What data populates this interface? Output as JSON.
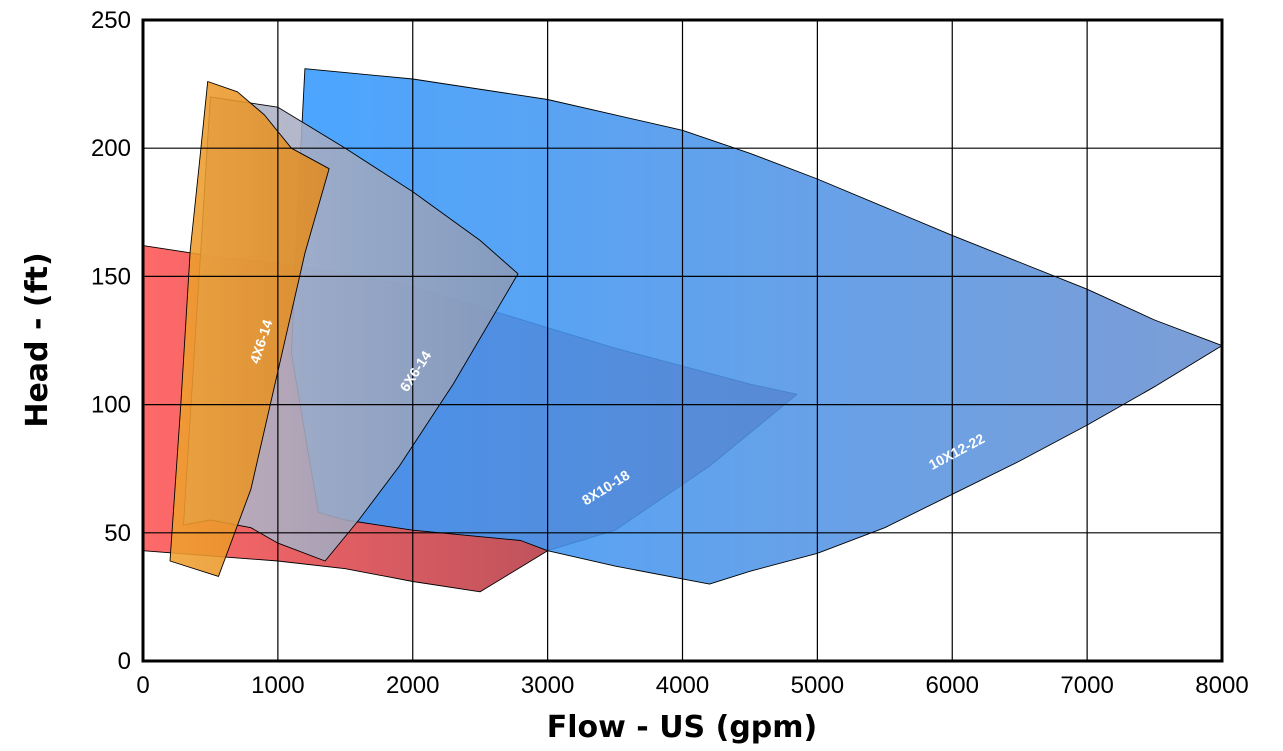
{
  "chart_data": {
    "type": "area",
    "xlabel": "Flow - US (gpm)",
    "ylabel": "Head - (ft)",
    "xlim": [
      0,
      8000
    ],
    "ylim": [
      0,
      250
    ],
    "x_ticks": [
      "0",
      "1000",
      "2000",
      "3000",
      "4000",
      "5000",
      "6000",
      "7000",
      "8000"
    ],
    "y_ticks": [
      "0",
      "50",
      "100",
      "150",
      "200",
      "250"
    ],
    "grid": true,
    "series": [
      {
        "name": "8X10-18",
        "color_light": "#ff5555",
        "color_dark": "#8a2a3c",
        "label_pos": [
          3450,
          66
        ],
        "label_angle": -32,
        "points": [
          [
            0,
            162
          ],
          [
            500,
            158
          ],
          [
            1000,
            155
          ],
          [
            1500,
            151
          ],
          [
            2000,
            146
          ],
          [
            2500,
            138
          ],
          [
            3000,
            130
          ],
          [
            3500,
            122
          ],
          [
            4000,
            115
          ],
          [
            4500,
            108
          ],
          [
            4850,
            104
          ],
          [
            4200,
            76
          ],
          [
            3500,
            51
          ],
          [
            3000,
            43
          ],
          [
            2500,
            27
          ],
          [
            2000,
            31
          ],
          [
            1500,
            36
          ],
          [
            1000,
            39
          ],
          [
            500,
            41
          ],
          [
            0,
            43
          ]
        ]
      },
      {
        "name": "10X12-22",
        "color_light": "#3399ff",
        "color_dark": "#6a90d0",
        "label_pos": [
          6050,
          80
        ],
        "label_angle": -28,
        "points": [
          [
            1200,
            231
          ],
          [
            2000,
            227
          ],
          [
            3000,
            219
          ],
          [
            4000,
            207
          ],
          [
            4500,
            198
          ],
          [
            5000,
            188
          ],
          [
            6000,
            166
          ],
          [
            7000,
            145
          ],
          [
            7500,
            133
          ],
          [
            8000,
            123
          ],
          [
            7500,
            107
          ],
          [
            7000,
            92
          ],
          [
            6500,
            78
          ],
          [
            6000,
            65
          ],
          [
            5500,
            52
          ],
          [
            5000,
            42
          ],
          [
            4500,
            35
          ],
          [
            4200,
            30
          ],
          [
            3500,
            37
          ],
          [
            3000,
            43
          ],
          [
            2800,
            47
          ],
          [
            2000,
            51
          ],
          [
            1500,
            55
          ],
          [
            1300,
            58
          ],
          [
            1100,
            120
          ],
          [
            1150,
            180
          ],
          [
            1200,
            231
          ]
        ]
      },
      {
        "name": "6X6-14",
        "color_light": "#b8b8c8",
        "color_dark": "#8a9ab8",
        "label_pos": [
          2050,
          112
        ],
        "label_angle": -57,
        "points": [
          [
            500,
            220
          ],
          [
            1000,
            216
          ],
          [
            1500,
            200
          ],
          [
            2000,
            183
          ],
          [
            2500,
            164
          ],
          [
            2780,
            151
          ],
          [
            2300,
            108
          ],
          [
            1900,
            76
          ],
          [
            1600,
            55
          ],
          [
            1350,
            39
          ],
          [
            1000,
            46
          ],
          [
            800,
            52
          ],
          [
            500,
            55
          ],
          [
            300,
            53
          ]
        ]
      },
      {
        "name": "4X6-14",
        "color_light": "#f0a030",
        "color_dark": "#e08a20",
        "label_pos": [
          910,
          124
        ],
        "label_angle": -72,
        "points": [
          [
            480,
            226
          ],
          [
            700,
            222
          ],
          [
            900,
            213
          ],
          [
            1100,
            200
          ],
          [
            1380,
            192
          ],
          [
            1200,
            159
          ],
          [
            1000,
            113
          ],
          [
            800,
            67
          ],
          [
            560,
            33
          ],
          [
            200,
            39
          ],
          [
            280,
            100
          ],
          [
            350,
            160
          ],
          [
            420,
            195
          ],
          [
            480,
            226
          ]
        ]
      }
    ]
  }
}
